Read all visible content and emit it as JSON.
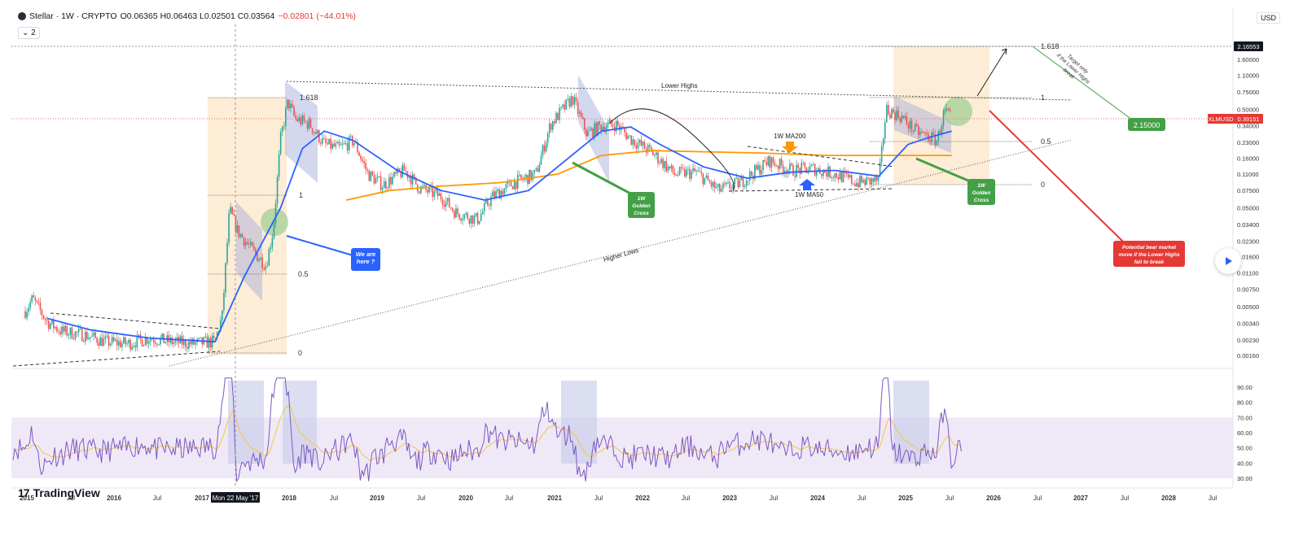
{
  "header": {
    "symbol": "Stellar · 1W · CRYPTO",
    "ohlc": "O0.06365 H0.06463 L0.02501 C0.03564",
    "change": "−0.02801 (−44.01%)",
    "indicator_count": "2"
  },
  "currency": "USD",
  "brand": "TradingView",
  "chart_data": {
    "type": "candlestick",
    "symbol": "XLMUSD",
    "timeframe": "1W",
    "y_scale": "log",
    "grid": false,
    "x_ticks": [
      "2015",
      "Jul",
      "2016",
      "Jul",
      "2017",
      "Mon 22 May '17",
      "2018",
      "Jul",
      "2019",
      "Jul",
      "2020",
      "Jul",
      "2021",
      "Jul",
      "2022",
      "Jul",
      "2023",
      "Jul",
      "2024",
      "Jul",
      "2025",
      "Jul",
      "2026",
      "Jul",
      "2027",
      "Jul",
      "2028",
      "Jul"
    ],
    "y_ticks": [
      "1.60000",
      "1.10000",
      "0.75000",
      "0.50000",
      "0.34000",
      "0.23000",
      "0.16000",
      "0.11000",
      "0.07500",
      "0.05000",
      "0.03400",
      "0.02300",
      "0.01600",
      "0.01100",
      "0.00750",
      "0.00500",
      "0.00340",
      "0.00230",
      "0.00160"
    ],
    "price_labels": [
      {
        "text": "2.16553",
        "role": "target"
      },
      {
        "text": "XLMUSD",
        "role": "symbol"
      },
      {
        "text": "0.39151",
        "role": "last"
      }
    ],
    "price_path": [
      {
        "d": "2015-01",
        "v": 0.0045
      },
      {
        "d": "2015-02",
        "v": 0.006
      },
      {
        "d": "2015-04",
        "v": 0.0035
      },
      {
        "d": "2015-06",
        "v": 0.0028
      },
      {
        "d": "2015-09",
        "v": 0.0026
      },
      {
        "d": "2015-12",
        "v": 0.0022
      },
      {
        "d": "2016-03",
        "v": 0.0021
      },
      {
        "d": "2016-06",
        "v": 0.0024
      },
      {
        "d": "2016-09",
        "v": 0.0022
      },
      {
        "d": "2016-12",
        "v": 0.0021
      },
      {
        "d": "2017-03",
        "v": 0.0022
      },
      {
        "d": "2017-04",
        "v": 0.004
      },
      {
        "d": "2017-05",
        "v": 0.048
      },
      {
        "d": "2017-06",
        "v": 0.03
      },
      {
        "d": "2017-08",
        "v": 0.019
      },
      {
        "d": "2017-10",
        "v": 0.013
      },
      {
        "d": "2017-11",
        "v": 0.03
      },
      {
        "d": "2017-12",
        "v": 0.25
      },
      {
        "d": "2018-01",
        "v": 0.6
      },
      {
        "d": "2018-02",
        "v": 0.4
      },
      {
        "d": "2018-04",
        "v": 0.35
      },
      {
        "d": "2018-06",
        "v": 0.22
      },
      {
        "d": "2018-08",
        "v": 0.2
      },
      {
        "d": "2018-10",
        "v": 0.24
      },
      {
        "d": "2018-12",
        "v": 0.11
      },
      {
        "d": "2019-02",
        "v": 0.085
      },
      {
        "d": "2019-05",
        "v": 0.12
      },
      {
        "d": "2019-07",
        "v": 0.08
      },
      {
        "d": "2019-10",
        "v": 0.065
      },
      {
        "d": "2019-12",
        "v": 0.045
      },
      {
        "d": "2020-03",
        "v": 0.038
      },
      {
        "d": "2020-05",
        "v": 0.065
      },
      {
        "d": "2020-08",
        "v": 0.09
      },
      {
        "d": "2020-11",
        "v": 0.11
      },
      {
        "d": "2021-01",
        "v": 0.35
      },
      {
        "d": "2021-04",
        "v": 0.65
      },
      {
        "d": "2021-06",
        "v": 0.28
      },
      {
        "d": "2021-08",
        "v": 0.34
      },
      {
        "d": "2021-10",
        "v": 0.35
      },
      {
        "d": "2021-12",
        "v": 0.25
      },
      {
        "d": "2022-03",
        "v": 0.18
      },
      {
        "d": "2022-06",
        "v": 0.11
      },
      {
        "d": "2022-09",
        "v": 0.115
      },
      {
        "d": "2022-12",
        "v": 0.075
      },
      {
        "d": "2023-03",
        "v": 0.09
      },
      {
        "d": "2023-07",
        "v": 0.15
      },
      {
        "d": "2023-10",
        "v": 0.12
      },
      {
        "d": "2024-01",
        "v": 0.125
      },
      {
        "d": "2024-04",
        "v": 0.11
      },
      {
        "d": "2024-07",
        "v": 0.09
      },
      {
        "d": "2024-10",
        "v": 0.095
      },
      {
        "d": "2024-11",
        "v": 0.5
      },
      {
        "d": "2025-01",
        "v": 0.42
      },
      {
        "d": "2025-03",
        "v": 0.3
      },
      {
        "d": "2025-06",
        "v": 0.24
      },
      {
        "d": "2025-07",
        "v": 0.48
      },
      {
        "d": "2025-08",
        "v": 0.39
      }
    ],
    "ma50": [
      {
        "d": "2015-04",
        "v": 0.0038
      },
      {
        "d": "2015-10",
        "v": 0.0029
      },
      {
        "d": "2016-06",
        "v": 0.0024
      },
      {
        "d": "2017-03",
        "v": 0.0022
      },
      {
        "d": "2017-07",
        "v": 0.01
      },
      {
        "d": "2017-12",
        "v": 0.05
      },
      {
        "d": "2018-03",
        "v": 0.2
      },
      {
        "d": "2018-06",
        "v": 0.3
      },
      {
        "d": "2018-10",
        "v": 0.24
      },
      {
        "d": "2019-04",
        "v": 0.12
      },
      {
        "d": "2019-10",
        "v": 0.075
      },
      {
        "d": "2020-04",
        "v": 0.06
      },
      {
        "d": "2020-10",
        "v": 0.075
      },
      {
        "d": "2021-03",
        "v": 0.15
      },
      {
        "d": "2021-08",
        "v": 0.3
      },
      {
        "d": "2021-12",
        "v": 0.33
      },
      {
        "d": "2022-04",
        "v": 0.22
      },
      {
        "d": "2022-10",
        "v": 0.13
      },
      {
        "d": "2023-04",
        "v": 0.1
      },
      {
        "d": "2023-10",
        "v": 0.115
      },
      {
        "d": "2024-04",
        "v": 0.12
      },
      {
        "d": "2024-10",
        "v": 0.105
      },
      {
        "d": "2025-02",
        "v": 0.22
      },
      {
        "d": "2025-05",
        "v": 0.26
      },
      {
        "d": "2025-08",
        "v": 0.3
      }
    ],
    "ma200": [
      {
        "d": "2018-09",
        "v": 0.06
      },
      {
        "d": "2019-03",
        "v": 0.075
      },
      {
        "d": "2019-10",
        "v": 0.083
      },
      {
        "d": "2020-06",
        "v": 0.09
      },
      {
        "d": "2021-02",
        "v": 0.11
      },
      {
        "d": "2021-08",
        "v": 0.17
      },
      {
        "d": "2022-03",
        "v": 0.19
      },
      {
        "d": "2022-10",
        "v": 0.185
      },
      {
        "d": "2023-06",
        "v": 0.18
      },
      {
        "d": "2024-03",
        "v": 0.17
      },
      {
        "d": "2024-10",
        "v": 0.17
      },
      {
        "d": "2025-08",
        "v": 0.17
      }
    ],
    "rsi": {
      "y_ticks": [
        "90.00",
        "80.00",
        "70.00",
        "60.00",
        "50.00",
        "40.00",
        "30.00"
      ],
      "band": [
        30,
        70
      ],
      "last": 55
    }
  },
  "annotations": {
    "fib_left": [
      "1.618",
      "1",
      "0.5",
      "0"
    ],
    "fib_right": [
      "1.618",
      "1",
      "0.5",
      "0"
    ],
    "lower_highs": "Lower Highs",
    "higher_lows": "Higher Lows",
    "ma200_label": "1W MA200",
    "ma50_label": "1W MA50",
    "we_are_here": [
      "We are",
      "here ?"
    ],
    "golden_cross_1": [
      "1W",
      "Golden",
      "Cross"
    ],
    "golden_cross_2": [
      "1W",
      "Golden",
      "Cross"
    ],
    "target_note": [
      "Target only",
      "if the Lower Highs",
      "break"
    ],
    "target_value": "2.15000",
    "bear_note": [
      "Potential bear market",
      "move if the Lower Highs",
      "fail to break"
    ]
  },
  "colors": {
    "up": "#26a69a",
    "down": "#ef5350",
    "ma50": "#2962ff",
    "ma200": "#ff9800",
    "rsi": "#7e57c2",
    "rsi_ma": "#f4c542",
    "callout_blue": "#2962ff",
    "callout_green": "#43a047",
    "callout_red": "#e53935"
  }
}
